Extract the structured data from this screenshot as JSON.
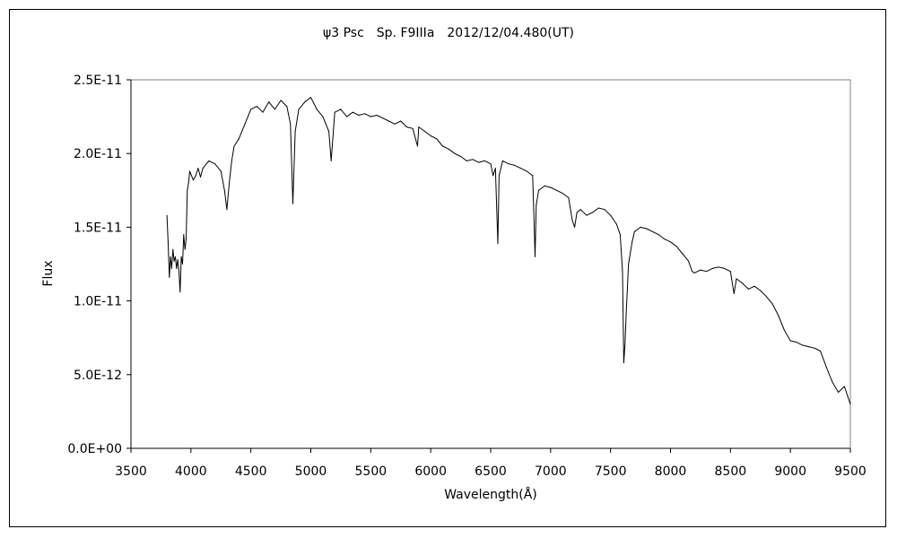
{
  "chart_data": {
    "type": "line",
    "title": "ψ3 Psc　Sp. F9IIIa　2012/12/04.480(UT)",
    "xlabel": "Wavelength(Å)",
    "ylabel": "Flux",
    "xlim": [
      3500,
      9500
    ],
    "ylim": [
      0,
      2.5e-11
    ],
    "x_ticks": [
      3500,
      4000,
      4500,
      5000,
      5500,
      6000,
      6500,
      7000,
      7500,
      8000,
      8500,
      9000,
      9500
    ],
    "x_tick_labels": [
      "3500",
      "4000",
      "4500",
      "5000",
      "5500",
      "6000",
      "6500",
      "7000",
      "7500",
      "8000",
      "8500",
      "9000",
      "9500"
    ],
    "y_ticks": [
      0,
      5e-12,
      1e-11,
      1.5e-11,
      2e-11,
      2.5e-11
    ],
    "y_tick_labels": [
      "0.0E+00",
      "5.0E-12",
      "1.0E-11",
      "1.5E-11",
      "2.0E-11",
      "2.5E-11"
    ],
    "grid": false,
    "legend": "none",
    "line_color": "#000000",
    "series": [
      {
        "x": [
          3800,
          3810,
          3820,
          3830,
          3840,
          3850,
          3860,
          3870,
          3880,
          3890,
          3900,
          3910,
          3920,
          3930,
          3940,
          3950,
          3960,
          3970,
          3980,
          3990,
          4000,
          4020,
          4040,
          4060,
          4080,
          4100,
          4150,
          4200,
          4250,
          4280,
          4300,
          4320,
          4340,
          4360,
          4400,
          4450,
          4500,
          4550,
          4600,
          4650,
          4700,
          4750,
          4800,
          4830,
          4850,
          4870,
          4900,
          4950,
          5000,
          5050,
          5100,
          5150,
          5170,
          5200,
          5250,
          5300,
          5350,
          5400,
          5450,
          5500,
          5550,
          5600,
          5650,
          5700,
          5750,
          5800,
          5850,
          5890,
          5900,
          5950,
          6000,
          6050,
          6100,
          6150,
          6200,
          6250,
          6300,
          6350,
          6400,
          6450,
          6500,
          6520,
          6540,
          6560,
          6570,
          6600,
          6650,
          6700,
          6750,
          6800,
          6850,
          6860,
          6870,
          6880,
          6900,
          6950,
          7000,
          7050,
          7100,
          7150,
          7180,
          7200,
          7220,
          7250,
          7300,
          7350,
          7400,
          7450,
          7500,
          7550,
          7580,
          7600,
          7610,
          7620,
          7630,
          7650,
          7680,
          7700,
          7750,
          7800,
          7850,
          7900,
          7950,
          8000,
          8050,
          8100,
          8150,
          8180,
          8200,
          8250,
          8300,
          8350,
          8400,
          8450,
          8500,
          8530,
          8550,
          8600,
          8650,
          8700,
          8750,
          8800,
          8850,
          8900,
          8950,
          9000,
          9050,
          9100,
          9150,
          9200,
          9250,
          9300,
          9350,
          9400,
          9450,
          9500
        ],
        "y": [
          1.58e-11,
          1.4e-11,
          1.16e-11,
          1.3e-11,
          1.22e-11,
          1.35e-11,
          1.27e-11,
          1.3e-11,
          1.22e-11,
          1.28e-11,
          1.2e-11,
          1.06e-11,
          1.3e-11,
          1.25e-11,
          1.45e-11,
          1.35e-11,
          1.42e-11,
          1.75e-11,
          1.8e-11,
          1.88e-11,
          1.86e-11,
          1.82e-11,
          1.85e-11,
          1.9e-11,
          1.84e-11,
          1.9e-11,
          1.95e-11,
          1.93e-11,
          1.88e-11,
          1.75e-11,
          1.62e-11,
          1.8e-11,
          1.95e-11,
          2.05e-11,
          2.1e-11,
          2.2e-11,
          2.3e-11,
          2.32e-11,
          2.28e-11,
          2.35e-11,
          2.3e-11,
          2.36e-11,
          2.32e-11,
          2.2e-11,
          1.66e-11,
          2.15e-11,
          2.3e-11,
          2.35e-11,
          2.38e-11,
          2.3e-11,
          2.25e-11,
          2.15e-11,
          1.95e-11,
          2.28e-11,
          2.3e-11,
          2.25e-11,
          2.28e-11,
          2.26e-11,
          2.27e-11,
          2.25e-11,
          2.26e-11,
          2.24e-11,
          2.22e-11,
          2.2e-11,
          2.22e-11,
          2.18e-11,
          2.17e-11,
          2.05e-11,
          2.18e-11,
          2.15e-11,
          2.12e-11,
          2.1e-11,
          2.05e-11,
          2.03e-11,
          2e-11,
          1.98e-11,
          1.95e-11,
          1.96e-11,
          1.94e-11,
          1.95e-11,
          1.93e-11,
          1.85e-11,
          1.9e-11,
          1.39e-11,
          1.85e-11,
          1.95e-11,
          1.93e-11,
          1.92e-11,
          1.9e-11,
          1.88e-11,
          1.85e-11,
          1.6e-11,
          1.3e-11,
          1.65e-11,
          1.75e-11,
          1.78e-11,
          1.77e-11,
          1.75e-11,
          1.73e-11,
          1.7e-11,
          1.55e-11,
          1.5e-11,
          1.6e-11,
          1.62e-11,
          1.58e-11,
          1.6e-11,
          1.63e-11,
          1.62e-11,
          1.58e-11,
          1.52e-11,
          1.45e-11,
          1.2e-11,
          5.8e-12,
          7e-12,
          9e-12,
          1.25e-11,
          1.4e-11,
          1.47e-11,
          1.5e-11,
          1.49e-11,
          1.47e-11,
          1.45e-11,
          1.42e-11,
          1.4e-11,
          1.37e-11,
          1.32e-11,
          1.27e-11,
          1.2e-11,
          1.19e-11,
          1.21e-11,
          1.2e-11,
          1.22e-11,
          1.23e-11,
          1.22e-11,
          1.2e-11,
          1.05e-11,
          1.15e-11,
          1.12e-11,
          1.08e-11,
          1.1e-11,
          1.07e-11,
          1.03e-11,
          9.8e-12,
          9e-12,
          8e-12,
          7.3e-12,
          7.2e-12,
          7e-12,
          6.9e-12,
          6.8e-12,
          6.6e-12,
          5.5e-12,
          4.5e-12,
          3.8e-12,
          4.2e-12,
          3e-12
        ]
      }
    ]
  }
}
